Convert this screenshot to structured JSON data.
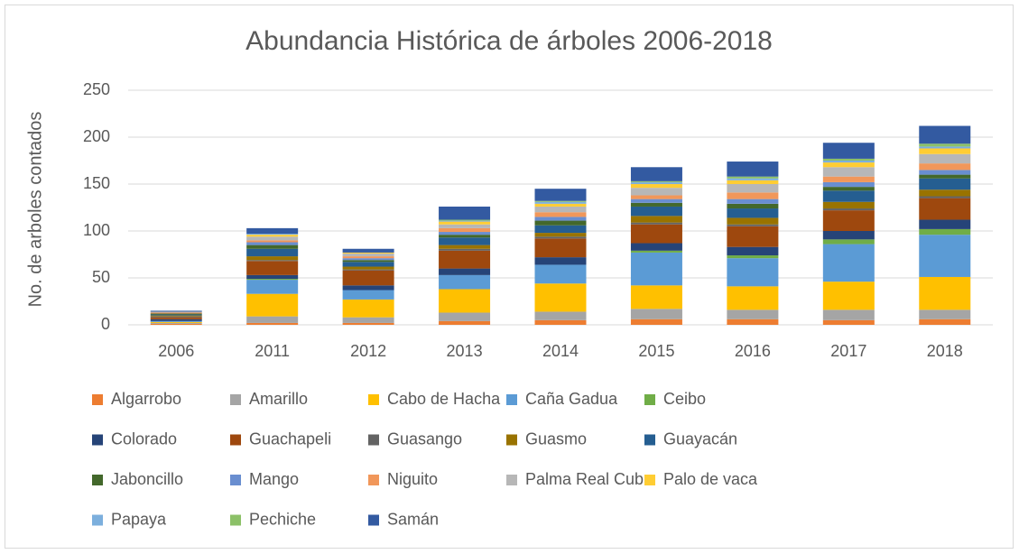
{
  "chart_data": {
    "type": "stacked_bar",
    "title": "Abundancia Histórica de árboles 2006-2018",
    "y_label": "No. de arboles contados",
    "categories": [
      "2006",
      "2011",
      "2012",
      "2013",
      "2014",
      "2015",
      "2016",
      "2017",
      "2018"
    ],
    "ylim": [
      0,
      250
    ],
    "yticks": [
      0,
      50,
      100,
      150,
      200,
      250
    ],
    "grid": true,
    "legend": "bottom",
    "series": [
      {
        "name": "Algarrobo",
        "color": "#ED7D31",
        "values": [
          1,
          2,
          2,
          4,
          5,
          6,
          6,
          5,
          6
        ]
      },
      {
        "name": "Amarillo",
        "color": "#A5A5A5",
        "values": [
          1,
          7,
          6,
          9,
          9,
          11,
          10,
          11,
          10
        ]
      },
      {
        "name": "Cabo de Hacha",
        "color": "#FFC000",
        "values": [
          1,
          24,
          19,
          25,
          30,
          25,
          25,
          30,
          35
        ]
      },
      {
        "name": "Caña Gadua",
        "color": "#5B9BD5",
        "values": [
          1,
          15,
          10,
          15,
          20,
          35,
          30,
          40,
          45
        ]
      },
      {
        "name": "Ceibo",
        "color": "#70AD47",
        "values": [
          0,
          1,
          0,
          0,
          0,
          2,
          3,
          5,
          6
        ]
      },
      {
        "name": "Colorado",
        "color": "#264478",
        "values": [
          2,
          4,
          5,
          7,
          8,
          8,
          9,
          9,
          10
        ]
      },
      {
        "name": "Guachapeli",
        "color": "#9E480E",
        "values": [
          2,
          15,
          16,
          19,
          20,
          20,
          22,
          22,
          23
        ]
      },
      {
        "name": "Guasango",
        "color": "#636363",
        "values": [
          1,
          1,
          1,
          2,
          2,
          2,
          2,
          2,
          2
        ]
      },
      {
        "name": "Guasmo",
        "color": "#997300",
        "values": [
          1,
          4,
          3,
          4,
          4,
          7,
          7,
          7,
          7
        ]
      },
      {
        "name": "Guayacán",
        "color": "#255E91",
        "values": [
          1,
          8,
          5,
          8,
          8,
          10,
          10,
          12,
          12
        ]
      },
      {
        "name": "Jaboncillo",
        "color": "#43682B",
        "values": [
          1,
          4,
          2,
          3,
          5,
          4,
          5,
          4,
          4
        ]
      },
      {
        "name": "Mango",
        "color": "#698ED0",
        "values": [
          0,
          3,
          2,
          3,
          4,
          4,
          5,
          5,
          5
        ]
      },
      {
        "name": "Niguito",
        "color": "#F1975A",
        "values": [
          1,
          2,
          2,
          4,
          5,
          4,
          7,
          6,
          7
        ]
      },
      {
        "name": "Palma Real Cuba",
        "color": "#B7B7B7",
        "values": [
          1,
          4,
          3,
          4,
          6,
          8,
          9,
          10,
          10
        ]
      },
      {
        "name": "Palo de vaca",
        "color": "#FFCD33",
        "values": [
          0,
          2,
          1,
          3,
          3,
          4,
          4,
          5,
          6
        ]
      },
      {
        "name": "Papaya",
        "color": "#7CAFDD",
        "values": [
          0,
          1,
          0,
          1,
          2,
          2,
          2,
          2,
          2
        ]
      },
      {
        "name": "Pechiche",
        "color": "#8CC168",
        "values": [
          0,
          0,
          0,
          1,
          1,
          1,
          2,
          2,
          3
        ]
      },
      {
        "name": "Samán",
        "color": "#335AA1",
        "values": [
          1,
          6,
          4,
          14,
          13,
          15,
          16,
          17,
          19
        ]
      }
    ]
  }
}
